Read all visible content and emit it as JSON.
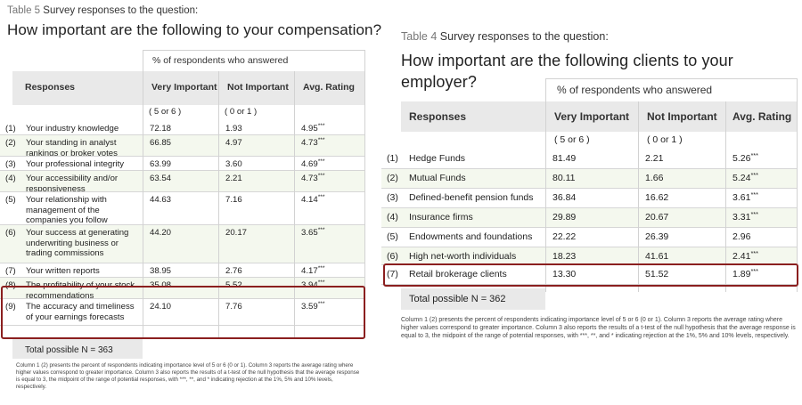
{
  "left": {
    "caption_label": "Table 5",
    "caption_text": "Survey responses to the question:",
    "title": "How important are the following to your compensation?",
    "group_header": "% of respondents who answered",
    "columns": {
      "responses": "Responses",
      "very": "Very Important",
      "not": "Not Important",
      "avg": "Avg. Rating"
    },
    "subheaders": {
      "very": "( 5 or 6 )",
      "not": "( 0 or 1 )"
    },
    "rows": [
      {
        "n": "(1)",
        "label": "Your industry knowledge",
        "very": "72.18",
        "not": "1.93",
        "avg": "4.95***"
      },
      {
        "n": "(2)",
        "label": "Your standing in analyst rankings or broker votes",
        "very": "66.85",
        "not": "4.97",
        "avg": "4.73***"
      },
      {
        "n": "(3)",
        "label": "Your professional integrity",
        "very": "63.99",
        "not": "3.60",
        "avg": "4.69***"
      },
      {
        "n": "(4)",
        "label": "Your accessibility and/or responsiveness",
        "very": "63.54",
        "not": "2.21",
        "avg": "4.73***"
      },
      {
        "n": "(5)",
        "label": "Your relationship with management of the companies you follow",
        "very": "44.63",
        "not": "7.16",
        "avg": "4.14***"
      },
      {
        "n": "(6)",
        "label": "Your success at generating underwriting business or trading commissions",
        "very": "44.20",
        "not": "20.17",
        "avg": "3.65***"
      },
      {
        "n": "(7)",
        "label": "Your written reports",
        "very": "38.95",
        "not": "2.76",
        "avg": "4.17***"
      },
      {
        "n": "(8)",
        "label": "The profitability of your stock recommendations",
        "very": "35.08",
        "not": "5.52",
        "avg": "3.94***"
      },
      {
        "n": "(9)",
        "label": "The accuracy and timeliness of your earnings forecasts",
        "very": "24.10",
        "not": "7.76",
        "avg": "3.59***"
      }
    ],
    "total": "Total possible N = 363",
    "note": "Column 1 (2) presents the percent of respondents indicating importance level of 5 or 6 (0 or 1). Column 3 reports the average rating where higher values correspond to greater importance. Column 3 also reports the results of a t-test of the null hypothesis that the average response is equal to 3, the midpoint of the range of potential responses, with ***, **, and * indicating rejection at the 1%, 5% and 10% levels, respectively."
  },
  "right": {
    "caption_label": "Table 4",
    "caption_text": "Survey responses to the question:",
    "title_line1": "How important are the following clients to your",
    "title_line2": "employer?",
    "group_header": "% of respondents who answered",
    "columns": {
      "responses": "Responses",
      "very": "Very Important",
      "not": "Not Important",
      "avg": "Avg. Rating"
    },
    "subheaders": {
      "very": "( 5 or 6 )",
      "not": "( 0 or 1 )"
    },
    "rows": [
      {
        "n": "(1)",
        "label": "Hedge Funds",
        "very": "81.49",
        "not": "2.21",
        "avg": "5.26***"
      },
      {
        "n": "(2)",
        "label": "Mutual Funds",
        "very": "80.11",
        "not": "1.66",
        "avg": "5.24***"
      },
      {
        "n": "(3)",
        "label": "Defined-benefit pension funds",
        "very": "36.84",
        "not": "16.62",
        "avg": "3.61***"
      },
      {
        "n": "(4)",
        "label": "Insurance firms",
        "very": "29.89",
        "not": "20.67",
        "avg": "3.31***"
      },
      {
        "n": "(5)",
        "label": "Endowments and foundations",
        "very": "22.22",
        "not": "26.39",
        "avg": "2.96"
      },
      {
        "n": "(6)",
        "label": "High net-worth individuals",
        "very": "18.23",
        "not": "41.61",
        "avg": "2.41***"
      },
      {
        "n": "(7)",
        "label": "Retail brokerage clients",
        "very": "13.30",
        "not": "51.52",
        "avg": "1.89***"
      }
    ],
    "total": "Total possible N = 362",
    "note": "Column 1 (2) presents the percent of respondents indicating importance level of 5 or 6 (0 or 1). Column 3 reports the average rating where higher values correspond to greater importance. Column 3 also reports the results of a t-test of the null hypothesis that the average response is equal to 3, the midpoint of the range of potential responses, with ***, **, and * indicating rejection at the 1%, 5% and 10% levels, respectively."
  }
}
